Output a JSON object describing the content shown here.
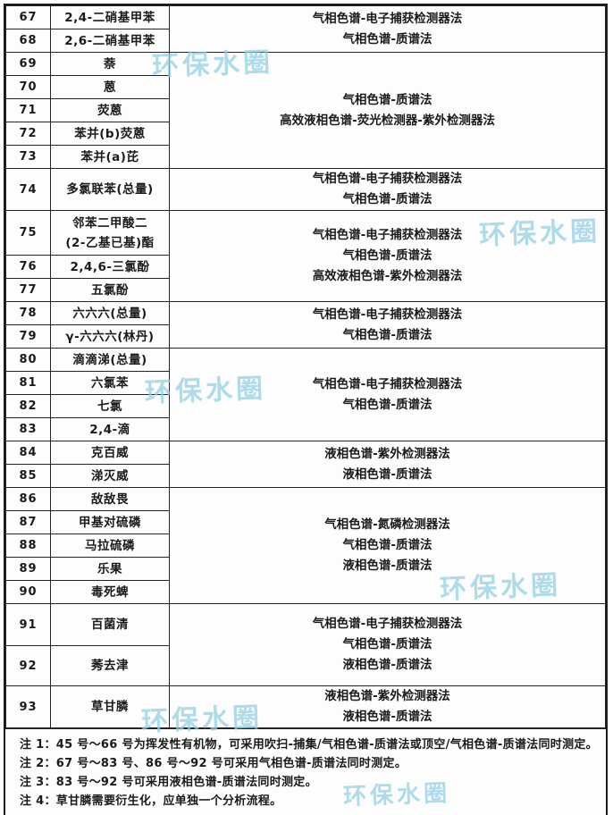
{
  "watermark": {
    "text": "环保水圈",
    "color": "#8fcfe4"
  },
  "table": {
    "rows": [
      {
        "num": "67",
        "name": [
          "2,4-二硝基甲苯"
        ],
        "method_rowspan": 2,
        "methods": [
          "气相色谱-电子捕获检测器法",
          "气相色谱-质谱法"
        ]
      },
      {
        "num": "68",
        "name": [
          "2,6-二硝基甲苯"
        ]
      },
      {
        "num": "69",
        "name": [
          "萘"
        ],
        "method_rowspan": 5,
        "methods": [
          "气相色谱-质谱法",
          "高效液相色谱-荧光检测器-紫外检测器法"
        ]
      },
      {
        "num": "70",
        "name": [
          "蒽"
        ]
      },
      {
        "num": "71",
        "name": [
          "荧蒽"
        ]
      },
      {
        "num": "72",
        "name": [
          "苯并(b)荧蒽"
        ]
      },
      {
        "num": "73",
        "name": [
          "苯并(a)芘"
        ]
      },
      {
        "num": "74",
        "name": [
          "多氯联苯(总量)"
        ],
        "method_rowspan": 1,
        "methods": [
          "气相色谱-电子捕获检测器法",
          "气相色谱-质谱法"
        ]
      },
      {
        "num": "75",
        "name": [
          "邻苯二甲酸二",
          "(2-乙基已基)酯"
        ],
        "method_rowspan": 3,
        "methods": [
          "气相色谱-电子捕获检测器法",
          "气相色谱-质谱法",
          "高效液相色谱-紫外检测器法"
        ]
      },
      {
        "num": "76",
        "name": [
          "2,4,6-三氯酚"
        ]
      },
      {
        "num": "77",
        "name": [
          "五氯酚"
        ]
      },
      {
        "num": "78",
        "name": [
          "六六六(总量)"
        ],
        "method_rowspan": 2,
        "methods": [
          "气相色谱-电子捕获检测器法",
          "气相色谱-质谱法"
        ]
      },
      {
        "num": "79",
        "name": [
          "γ-六六六(林丹)"
        ]
      },
      {
        "num": "80",
        "name": [
          "滴滴涕(总量)"
        ],
        "method_rowspan": 4,
        "methods": [
          "气相色谱-电子捕获检测器法",
          "气相色谱-质谱法"
        ]
      },
      {
        "num": "81",
        "name": [
          "六氯苯"
        ]
      },
      {
        "num": "82",
        "name": [
          "七氯"
        ]
      },
      {
        "num": "83",
        "name": [
          "2,4-滴"
        ]
      },
      {
        "num": "84",
        "name": [
          "克百威"
        ],
        "method_rowspan": 2,
        "methods": [
          "液相色谱-紫外检测器法",
          "液相色谱-质谱法"
        ]
      },
      {
        "num": "85",
        "name": [
          "涕灭威"
        ]
      },
      {
        "num": "86",
        "name": [
          "敌敌畏"
        ],
        "method_rowspan": 5,
        "methods": [
          "气相色谱-氮磷检测器法",
          "气相色谱-质谱法",
          "液相色谱-质谱法"
        ]
      },
      {
        "num": "87",
        "name": [
          "甲基对硫磷"
        ]
      },
      {
        "num": "88",
        "name": [
          "马拉硫磷"
        ]
      },
      {
        "num": "89",
        "name": [
          "乐果"
        ]
      },
      {
        "num": "90",
        "name": [
          "毒死蜱"
        ]
      },
      {
        "num": "91",
        "name": [
          "百菌清"
        ],
        "method_rowspan": 2,
        "methods": [
          "气相色谱-电子捕获检测器法",
          "气相色谱-质谱法",
          "液相色谱-质谱法"
        ]
      },
      {
        "num": "92",
        "name": [
          "莠去津"
        ]
      },
      {
        "num": "93",
        "name": [
          "草甘膦"
        ],
        "method_rowspan": 1,
        "methods": [
          "液相色谱-紫外检测器法",
          "液相色谱-质谱法"
        ]
      }
    ]
  },
  "notes": [
    "注 1：45 号～66 号为挥发性有机物，可采用吹扫-捕集/气相色谱-质谱法或顶空/气相色谱-质谱法同时测定。",
    "注 2：67 号～83 号、86 号～92 号可采用气相色谱-质谱法同时测定。",
    "注 3：83 号～92 号可采用液相色谱-质谱法同时测定。",
    "注 4：草甘膦需要衍生化，应单独一个分析流程。"
  ]
}
